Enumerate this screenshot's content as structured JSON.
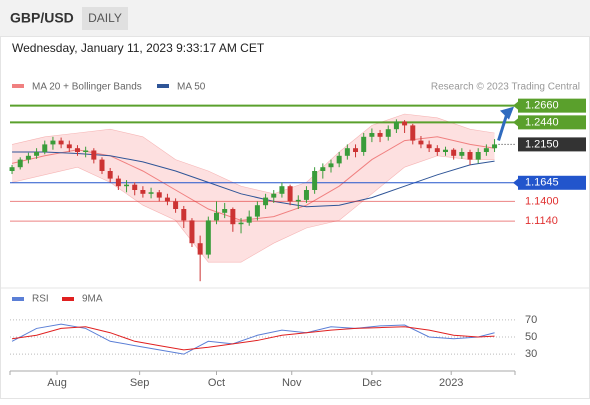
{
  "header": {
    "symbol": "GBP/USD",
    "timeframe": "DAILY",
    "datetime": "Wednesday, January 11, 2023 9:33:17 AM CET"
  },
  "chart_data": [
    {
      "type": "candlestick",
      "credit": "Research © 2023 Trading Central",
      "up_color": "#3a9c3a",
      "down_color": "#cc3333",
      "xlim": [
        -0.25,
        61.5
      ],
      "ylim": [
        1.03,
        1.28
      ],
      "xticks": [
        {
          "value": 5.5,
          "label": "Aug"
        },
        {
          "value": 15.6,
          "label": "Sep"
        },
        {
          "value": 25,
          "label": "Oct"
        },
        {
          "value": 34.2,
          "label": "Nov"
        },
        {
          "value": 44,
          "label": "Dec"
        },
        {
          "value": 53.7,
          "label": "2023"
        }
      ],
      "candles": [
        [
          1.18,
          1.188,
          1.176,
          1.185
        ],
        [
          1.185,
          1.198,
          1.182,
          1.195
        ],
        [
          1.195,
          1.204,
          1.19,
          1.2
        ],
        [
          1.2,
          1.21,
          1.196,
          1.205
        ],
        [
          1.205,
          1.22,
          1.202,
          1.215
        ],
        [
          1.215,
          1.225,
          1.208,
          1.22
        ],
        [
          1.22,
          1.224,
          1.21,
          1.215
        ],
        [
          1.215,
          1.22,
          1.205,
          1.21
        ],
        [
          1.21,
          1.214,
          1.2,
          1.205
        ],
        [
          1.205,
          1.212,
          1.198,
          1.207
        ],
        [
          1.207,
          1.21,
          1.19,
          1.195
        ],
        [
          1.195,
          1.198,
          1.176,
          1.18
        ],
        [
          1.18,
          1.184,
          1.165,
          1.17
        ],
        [
          1.17,
          1.174,
          1.155,
          1.16
        ],
        [
          1.16,
          1.168,
          1.152,
          1.162
        ],
        [
          1.162,
          1.165,
          1.148,
          1.155
        ],
        [
          1.155,
          1.16,
          1.145,
          1.15
        ],
        [
          1.15,
          1.158,
          1.144,
          1.152
        ],
        [
          1.152,
          1.155,
          1.14,
          1.145
        ],
        [
          1.145,
          1.15,
          1.135,
          1.14
        ],
        [
          1.14,
          1.144,
          1.125,
          1.13
        ],
        [
          1.13,
          1.134,
          1.105,
          1.115
        ],
        [
          1.115,
          1.118,
          1.08,
          1.085
        ],
        [
          1.085,
          1.095,
          1.035,
          1.07
        ],
        [
          1.07,
          1.12,
          1.065,
          1.115
        ],
        [
          1.115,
          1.14,
          1.11,
          1.125
        ],
        [
          1.125,
          1.138,
          1.118,
          1.13
        ],
        [
          1.13,
          1.132,
          1.1,
          1.11
        ],
        [
          1.11,
          1.118,
          1.098,
          1.112
        ],
        [
          1.112,
          1.128,
          1.108,
          1.12
        ],
        [
          1.12,
          1.14,
          1.115,
          1.135
        ],
        [
          1.135,
          1.15,
          1.13,
          1.145
        ],
        [
          1.145,
          1.155,
          1.138,
          1.15
        ],
        [
          1.15,
          1.165,
          1.145,
          1.16
        ],
        [
          1.16,
          1.162,
          1.135,
          1.14
        ],
        [
          1.14,
          1.148,
          1.13,
          1.142
        ],
        [
          1.142,
          1.16,
          1.138,
          1.155
        ],
        [
          1.155,
          1.185,
          1.15,
          1.18
        ],
        [
          1.18,
          1.19,
          1.17,
          1.185
        ],
        [
          1.185,
          1.195,
          1.178,
          1.19
        ],
        [
          1.19,
          1.205,
          1.185,
          1.2
        ],
        [
          1.2,
          1.215,
          1.195,
          1.21
        ],
        [
          1.21,
          1.215,
          1.198,
          1.205
        ],
        [
          1.205,
          1.23,
          1.2,
          1.225
        ],
        [
          1.225,
          1.236,
          1.218,
          1.23
        ],
        [
          1.23,
          1.234,
          1.218,
          1.225
        ],
        [
          1.225,
          1.24,
          1.22,
          1.235
        ],
        [
          1.235,
          1.248,
          1.23,
          1.245
        ],
        [
          1.245,
          1.247,
          1.23,
          1.24
        ],
        [
          1.24,
          1.242,
          1.215,
          1.22
        ],
        [
          1.22,
          1.226,
          1.21,
          1.215
        ],
        [
          1.215,
          1.22,
          1.205,
          1.21
        ],
        [
          1.21,
          1.214,
          1.2,
          1.205
        ],
        [
          1.205,
          1.212,
          1.2,
          1.208
        ],
        [
          1.208,
          1.21,
          1.195,
          1.2
        ],
        [
          1.2,
          1.21,
          1.196,
          1.205
        ],
        [
          1.205,
          1.208,
          1.188,
          1.195
        ],
        [
          1.195,
          1.21,
          1.19,
          1.205
        ],
        [
          1.205,
          1.215,
          1.2,
          1.21
        ],
        [
          1.21,
          1.222,
          1.205,
          1.215
        ]
      ],
      "series": [
        {
          "name": "MA 20 + Bollinger Bands",
          "color": "#f08080",
          "fill": "#fde0e0",
          "x": [
            0,
            4,
            8,
            12,
            16,
            20,
            24,
            28,
            32,
            36,
            40,
            44,
            48,
            52,
            56,
            59
          ],
          "upper": [
            1.215,
            1.225,
            1.23,
            1.235,
            1.225,
            1.195,
            1.18,
            1.16,
            1.15,
            1.165,
            1.205,
            1.24,
            1.255,
            1.25,
            1.235,
            1.23
          ],
          "middle": [
            1.19,
            1.2,
            1.208,
            1.2,
            1.18,
            1.155,
            1.13,
            1.115,
            1.12,
            1.135,
            1.16,
            1.195,
            1.22,
            1.225,
            1.215,
            1.21
          ],
          "lower": [
            1.165,
            1.175,
            1.185,
            1.165,
            1.135,
            1.115,
            1.06,
            1.06,
            1.085,
            1.105,
            1.115,
            1.15,
            1.185,
            1.2,
            1.195,
            1.195
          ]
        },
        {
          "name": "MA 50",
          "color": "#2f5597",
          "x": [
            0,
            4,
            8,
            12,
            16,
            20,
            24,
            28,
            32,
            36,
            40,
            44,
            48,
            52,
            56,
            59
          ],
          "values": [
            1.205,
            1.205,
            1.203,
            1.2,
            1.192,
            1.18,
            1.165,
            1.15,
            1.14,
            1.133,
            1.135,
            1.145,
            1.16,
            1.175,
            1.188,
            1.193
          ]
        }
      ],
      "levels": [
        {
          "value": 1.266,
          "label": "1.2660",
          "color": "#5aa02c",
          "style": "box"
        },
        {
          "value": 1.244,
          "label": "1.2440",
          "color": "#5aa02c",
          "style": "box"
        },
        {
          "value": 1.215,
          "label": "1.2150",
          "color": "#333333",
          "style": "current"
        },
        {
          "value": 1.1645,
          "label": "1.1645",
          "color": "#2255cc",
          "style": "box"
        },
        {
          "value": 1.14,
          "label": "1.1400",
          "color": "#e03030",
          "style": "text"
        },
        {
          "value": 1.114,
          "label": "1.1140",
          "color": "#e03030",
          "style": "text"
        }
      ]
    },
    {
      "type": "line",
      "xlim": [
        -0.25,
        61.5
      ],
      "ylim": [
        15,
        85
      ],
      "yticks": [
        70,
        50,
        30
      ],
      "grid": true,
      "x": [
        0,
        3,
        6,
        9,
        12,
        15,
        18,
        21,
        24,
        27,
        30,
        33,
        36,
        39,
        42,
        45,
        48,
        51,
        54,
        57,
        59
      ],
      "series": [
        {
          "name": "RSI",
          "color": "#5b7fd6",
          "values": [
            45,
            60,
            65,
            60,
            45,
            40,
            35,
            30,
            45,
            42,
            52,
            58,
            55,
            62,
            60,
            63,
            64,
            50,
            48,
            50,
            55
          ]
        },
        {
          "name": "9MA",
          "color": "#e02020",
          "values": [
            48,
            52,
            60,
            62,
            55,
            45,
            40,
            35,
            38,
            42,
            46,
            52,
            55,
            58,
            60,
            61,
            62,
            58,
            52,
            50,
            51
          ]
        }
      ]
    }
  ]
}
